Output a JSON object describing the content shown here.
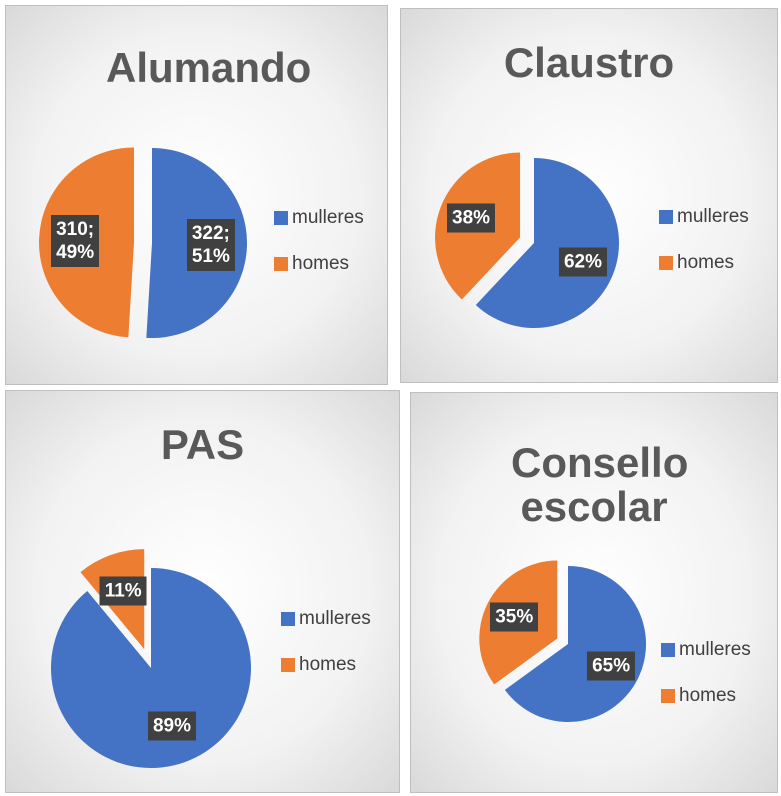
{
  "chart_data": [
    {
      "type": "pie",
      "title": "Alumando",
      "categories": [
        "mulleres",
        "homes"
      ],
      "values": [
        322,
        310
      ],
      "value_labels": [
        "322;\n51%",
        "310;\n49%"
      ],
      "colors": [
        "#4472c4",
        "#ed7d31"
      ],
      "legend": "right"
    },
    {
      "type": "pie",
      "title": "Claustro",
      "categories": [
        "mulleres",
        "homes"
      ],
      "values": [
        62,
        38
      ],
      "value_labels": [
        "62%",
        "38%"
      ],
      "colors": [
        "#4472c4",
        "#ed7d31"
      ],
      "legend": "right"
    },
    {
      "type": "pie",
      "title": "PAS",
      "categories": [
        "mulleres",
        "homes"
      ],
      "values": [
        89,
        11
      ],
      "value_labels": [
        "89%",
        "11%"
      ],
      "colors": [
        "#4472c4",
        "#ed7d31"
      ],
      "legend": "right"
    },
    {
      "type": "pie",
      "title": "Consello escolar",
      "categories": [
        "mulleres",
        "homes"
      ],
      "values": [
        65,
        35
      ],
      "value_labels": [
        "65%",
        "35%"
      ],
      "colors": [
        "#4472c4",
        "#ed7d31"
      ],
      "legend": "right"
    }
  ]
}
